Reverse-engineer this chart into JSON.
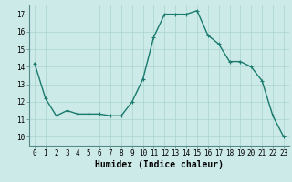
{
  "x": [
    0,
    1,
    2,
    3,
    4,
    5,
    6,
    7,
    8,
    9,
    10,
    11,
    12,
    13,
    14,
    15,
    16,
    17,
    18,
    19,
    20,
    21,
    22,
    23
  ],
  "y": [
    14.2,
    12.2,
    11.2,
    11.5,
    11.3,
    11.3,
    11.3,
    11.2,
    11.2,
    12.0,
    13.3,
    15.7,
    17.0,
    17.0,
    17.0,
    17.2,
    15.8,
    15.3,
    14.3,
    14.3,
    14.0,
    13.2,
    11.2,
    10.0
  ],
  "line_color": "#1a7a6e",
  "marker": "+",
  "marker_size": 3,
  "bg_color": "#cceae7",
  "grid_color": "#aad4d0",
  "xlabel": "Humidex (Indice chaleur)",
  "xlim": [
    -0.5,
    23.5
  ],
  "ylim": [
    9.5,
    17.5
  ],
  "yticks": [
    10,
    11,
    12,
    13,
    14,
    15,
    16,
    17
  ],
  "xticks": [
    0,
    1,
    2,
    3,
    4,
    5,
    6,
    7,
    8,
    9,
    10,
    11,
    12,
    13,
    14,
    15,
    16,
    17,
    18,
    19,
    20,
    21,
    22,
    23
  ],
  "tick_fontsize": 5.5,
  "xlabel_fontsize": 7.0,
  "line_width": 1.0
}
